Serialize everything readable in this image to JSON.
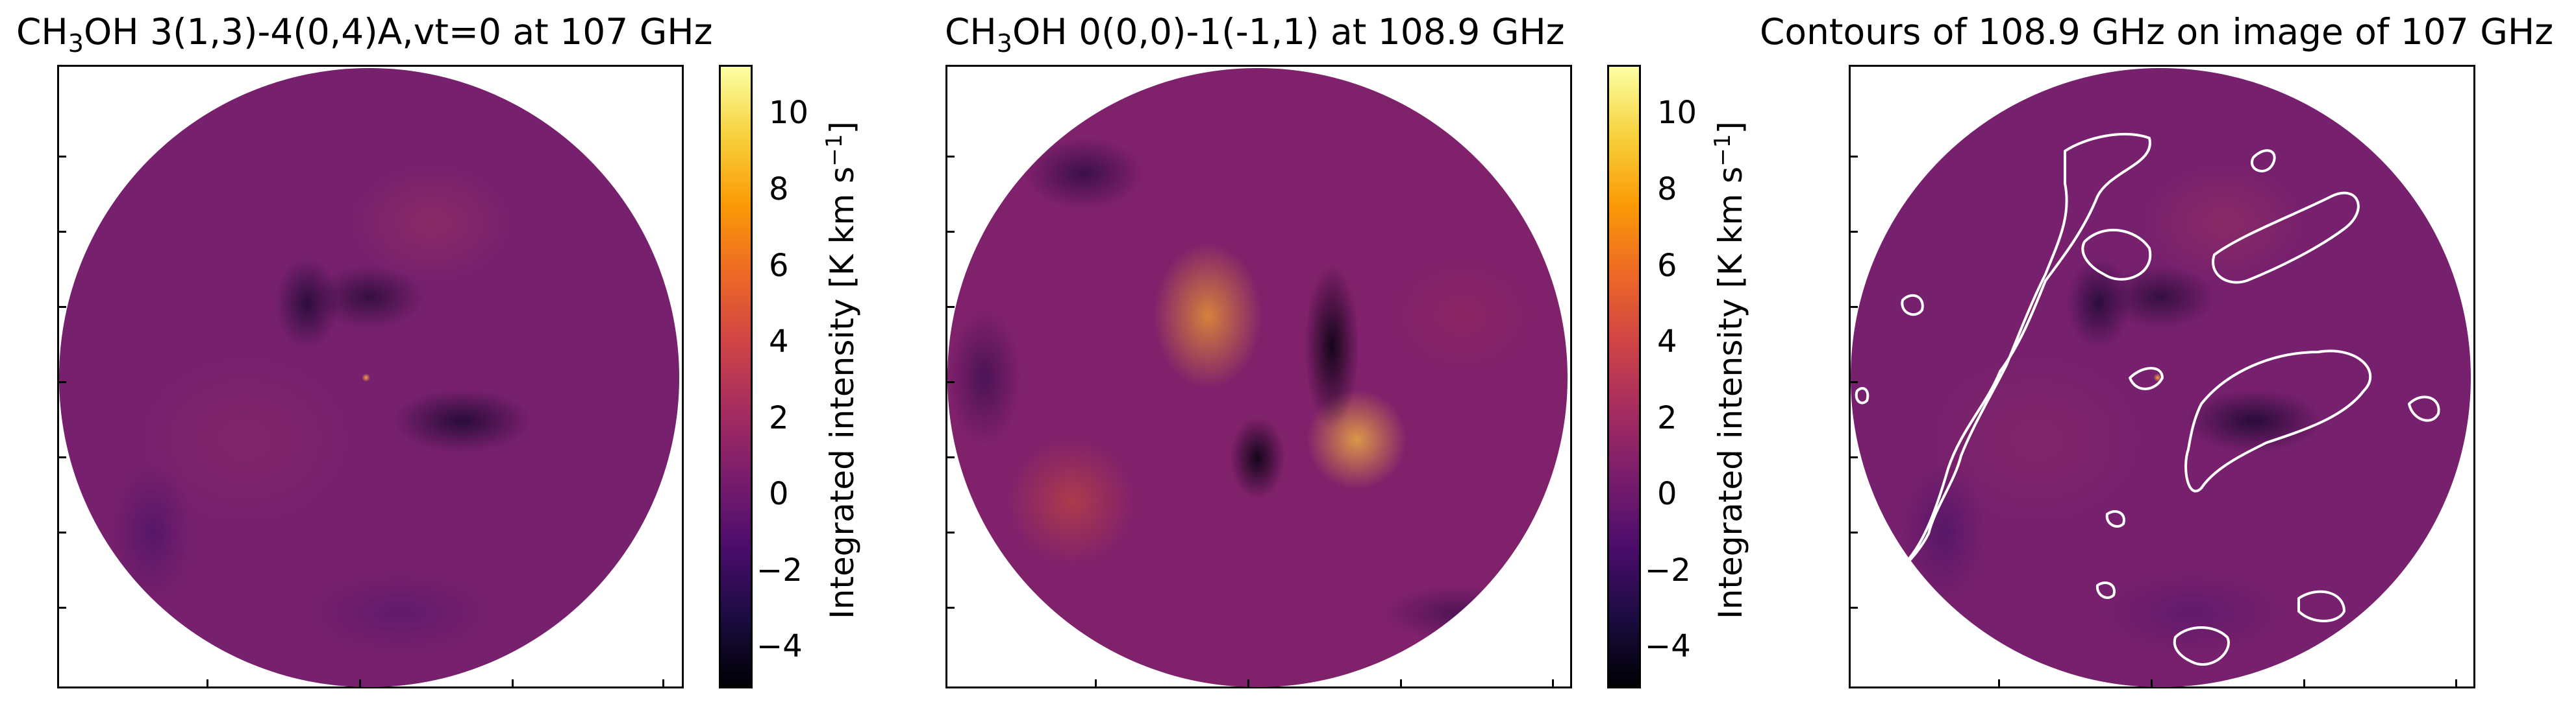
{
  "panels": [
    {
      "title_prefix": "CH",
      "title_sub": "3",
      "title_suffix": "OH 3(1,3)-4(0,4)A,vt=0 at 107 GHz",
      "image": "methanol-107ghz-map"
    },
    {
      "title_prefix": "CH",
      "title_sub": "3",
      "title_suffix": "OH 0(0,0)-1(-1,1) at 108.9 GHz",
      "image": "methanol-108.9ghz-map"
    },
    {
      "title": "Contours of 108.9 GHz on image of 107 GHz",
      "image": "contour-overlay-map",
      "contour_color": "#ffffff"
    }
  ],
  "colorbar": {
    "colormap": "inferno",
    "ticks": [
      "10",
      "8",
      "6",
      "4",
      "2",
      "0",
      "−2",
      "−4"
    ],
    "label_main": "Integrated intensity [K km s",
    "label_sup": "−1",
    "label_end": "]"
  }
}
